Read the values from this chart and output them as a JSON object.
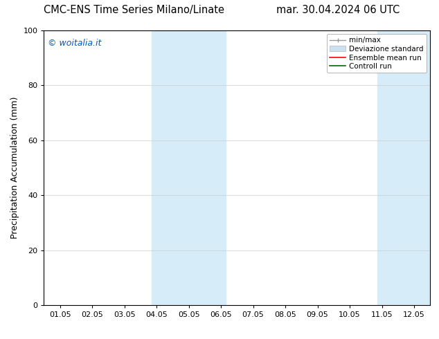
{
  "title_left": "CMC-ENS Time Series Milano/Linate",
  "title_right": "mar. 30.04.2024 06 UTC",
  "ylabel": "Precipitation Accumulation (mm)",
  "watermark": "© woitalia.it",
  "watermark_color": "#0055cc",
  "ylim": [
    0,
    100
  ],
  "yticks": [
    0,
    20,
    40,
    60,
    80,
    100
  ],
  "xtick_labels": [
    "01.05",
    "02.05",
    "03.05",
    "04.05",
    "05.05",
    "06.05",
    "07.05",
    "08.05",
    "09.05",
    "10.05",
    "11.05",
    "12.05"
  ],
  "xtick_positions": [
    1,
    2,
    3,
    4,
    5,
    6,
    7,
    8,
    9,
    10,
    11,
    12
  ],
  "xlim": [
    0.5,
    12.5
  ],
  "shaded_bands": [
    {
      "x_start": 3.85,
      "x_end": 6.15,
      "color": "#d6ecf8"
    },
    {
      "x_start": 10.85,
      "x_end": 12.5,
      "color": "#d6ecf8"
    }
  ],
  "bg_color": "#ffffff",
  "plot_bg_color": "#ffffff",
  "grid_color": "#cccccc",
  "title_fontsize": 10.5,
  "tick_fontsize": 8,
  "ylabel_fontsize": 9,
  "watermark_fontsize": 9,
  "legend_fontsize": 7.5
}
